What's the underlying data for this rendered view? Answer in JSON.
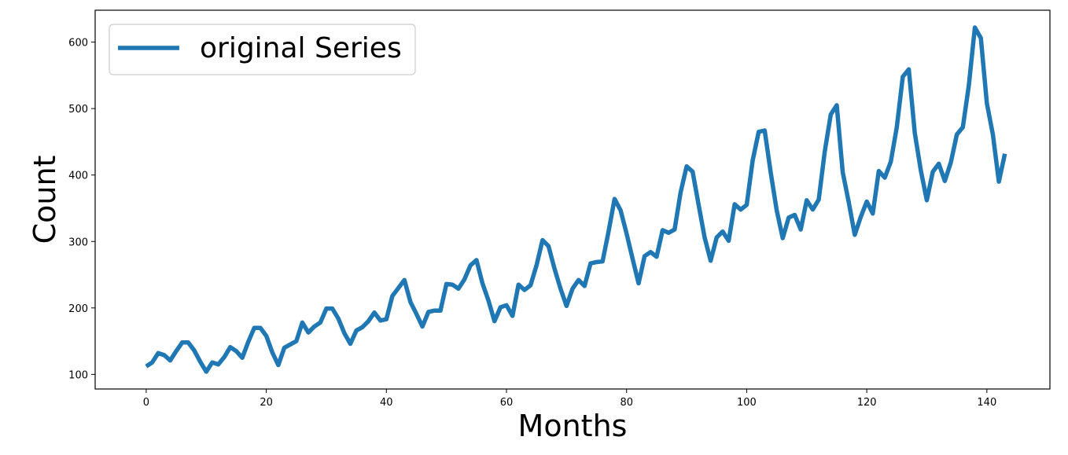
{
  "chart_data": {
    "type": "line",
    "xlabel": "Months",
    "ylabel": "Count",
    "xlim": [
      -8.5,
      150.5
    ],
    "ylim": [
      78,
      648
    ],
    "xticks": [
      0,
      20,
      40,
      60,
      80,
      100,
      120,
      140
    ],
    "yticks": [
      100,
      200,
      300,
      400,
      500,
      600
    ],
    "grid": false,
    "legend": {
      "position": "top-left"
    },
    "series": [
      {
        "name": "original Series",
        "color": "#1f77b4",
        "x": [
          0,
          1,
          2,
          3,
          4,
          5,
          6,
          7,
          8,
          9,
          10,
          11,
          12,
          13,
          14,
          15,
          16,
          17,
          18,
          19,
          20,
          21,
          22,
          23,
          24,
          25,
          26,
          27,
          28,
          29,
          30,
          31,
          32,
          33,
          34,
          35,
          36,
          37,
          38,
          39,
          40,
          41,
          42,
          43,
          44,
          45,
          46,
          47,
          48,
          49,
          50,
          51,
          52,
          53,
          54,
          55,
          56,
          57,
          58,
          59,
          60,
          61,
          62,
          63,
          64,
          65,
          66,
          67,
          68,
          69,
          70,
          71,
          72,
          73,
          74,
          75,
          76,
          77,
          78,
          79,
          80,
          81,
          82,
          83,
          84,
          85,
          86,
          87,
          88,
          89,
          90,
          91,
          92,
          93,
          94,
          95,
          96,
          97,
          98,
          99,
          100,
          101,
          102,
          103,
          104,
          105,
          106,
          107,
          108,
          109,
          110,
          111,
          112,
          113,
          114,
          115,
          116,
          117,
          118,
          119,
          120,
          121,
          122,
          123,
          124,
          125,
          126,
          127,
          128,
          129,
          130,
          131,
          132,
          133,
          134,
          135,
          136,
          137,
          138,
          139,
          140,
          141,
          142,
          143
        ],
        "values": [
          112,
          118,
          132,
          129,
          121,
          135,
          148,
          148,
          136,
          119,
          104,
          118,
          115,
          126,
          141,
          135,
          125,
          149,
          170,
          170,
          158,
          133,
          114,
          140,
          145,
          150,
          178,
          163,
          172,
          178,
          199,
          199,
          184,
          162,
          146,
          166,
          171,
          180,
          193,
          181,
          183,
          218,
          230,
          242,
          209,
          191,
          172,
          194,
          196,
          196,
          236,
          235,
          229,
          243,
          264,
          272,
          237,
          211,
          180,
          201,
          204,
          188,
          235,
          227,
          234,
          264,
          302,
          293,
          259,
          229,
          203,
          229,
          242,
          233,
          267,
          269,
          270,
          315,
          364,
          347,
          312,
          274,
          237,
          278,
          284,
          277,
          317,
          313,
          318,
          374,
          413,
          405,
          355,
          306,
          271,
          306,
          315,
          301,
          356,
          348,
          355,
          422,
          465,
          467,
          404,
          347,
          305,
          336,
          340,
          318,
          362,
          348,
          363,
          435,
          491,
          505,
          404,
          359,
          310,
          337,
          360,
          342,
          406,
          396,
          420,
          472,
          548,
          559,
          463,
          407,
          362,
          405,
          417,
          391,
          419,
          461,
          472,
          535,
          622,
          606,
          508,
          461,
          390,
          432
        ]
      }
    ]
  }
}
